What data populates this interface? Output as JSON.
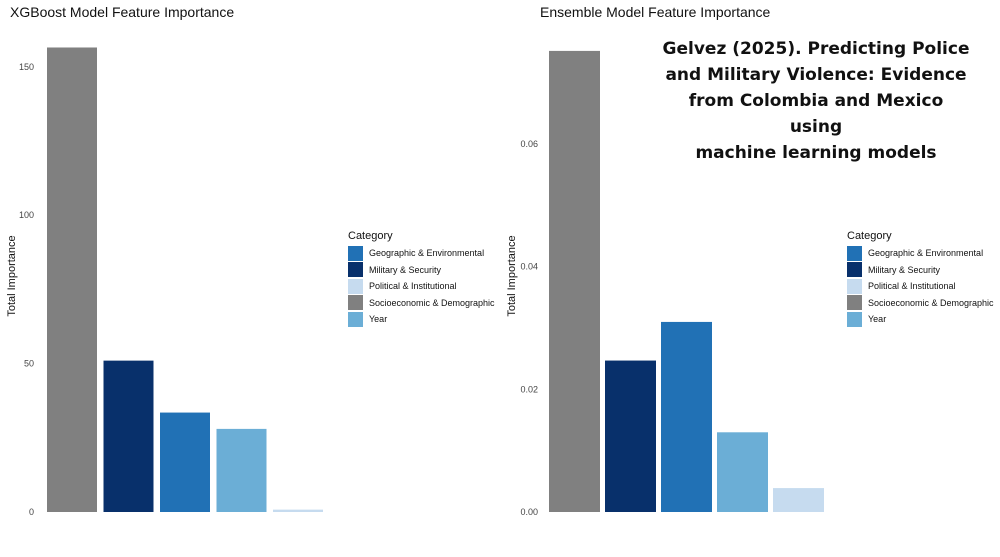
{
  "chart_data": [
    {
      "type": "bar",
      "title": "XGBoost Model Feature Importance",
      "xlabel": "",
      "ylabel": "Total Importance",
      "ylim": [
        0,
        157
      ],
      "yticks": [
        0,
        50,
        100,
        150
      ],
      "ytick_labels": [
        "0",
        "50",
        "100",
        "150"
      ],
      "categories": [
        "Socioeconomic & Demographic",
        "Military & Security",
        "Geographic & Environmental",
        "Year",
        "Political & Institutional"
      ],
      "values": [
        156.5,
        51,
        33.5,
        28,
        0.8
      ],
      "colors": [
        "#808080",
        "#08306b",
        "#2171b5",
        "#6baed6",
        "#c6dbef"
      ],
      "legend": {
        "title": "Category",
        "position": "right",
        "entries": [
          {
            "label": "Geographic & Environmental",
            "color": "#2171b5"
          },
          {
            "label": "Military & Security",
            "color": "#08306b"
          },
          {
            "label": "Political & Institutional",
            "color": "#c6dbef"
          },
          {
            "label": "Socioeconomic & Demographic",
            "color": "#808080"
          },
          {
            "label": "Year",
            "color": "#6baed6"
          }
        ]
      },
      "grid": false
    },
    {
      "type": "bar",
      "title": "Ensemble Model Feature Importance",
      "xlabel": "",
      "ylabel": "Total Importance",
      "ylim": [
        0,
        0.076
      ],
      "yticks": [
        0,
        0.02,
        0.04,
        0.06
      ],
      "ytick_labels": [
        "0.00",
        "0.02",
        "0.04",
        "0.06"
      ],
      "categories": [
        "Socioeconomic & Demographic",
        "Military & Security",
        "Geographic & Environmental",
        "Year",
        "Political & Institutional"
      ],
      "values": [
        0.0752,
        0.0247,
        0.031,
        0.013,
        0.0039
      ],
      "colors": [
        "#808080",
        "#08306b",
        "#2171b5",
        "#6baed6",
        "#c6dbef"
      ],
      "legend": {
        "title": "Category",
        "position": "right",
        "entries": [
          {
            "label": "Geographic & Environmental",
            "color": "#2171b5"
          },
          {
            "label": "Military & Security",
            "color": "#08306b"
          },
          {
            "label": "Political & Institutional",
            "color": "#c6dbef"
          },
          {
            "label": "Socioeconomic & Demographic",
            "color": "#808080"
          },
          {
            "label": "Year",
            "color": "#6baed6"
          }
        ]
      },
      "grid": false
    }
  ],
  "annotation": {
    "lines": [
      "Gelvez (2025). Predicting Police",
      "and Military Violence: Evidence",
      "from Colombia and Mexico using",
      "machine learning models"
    ]
  }
}
